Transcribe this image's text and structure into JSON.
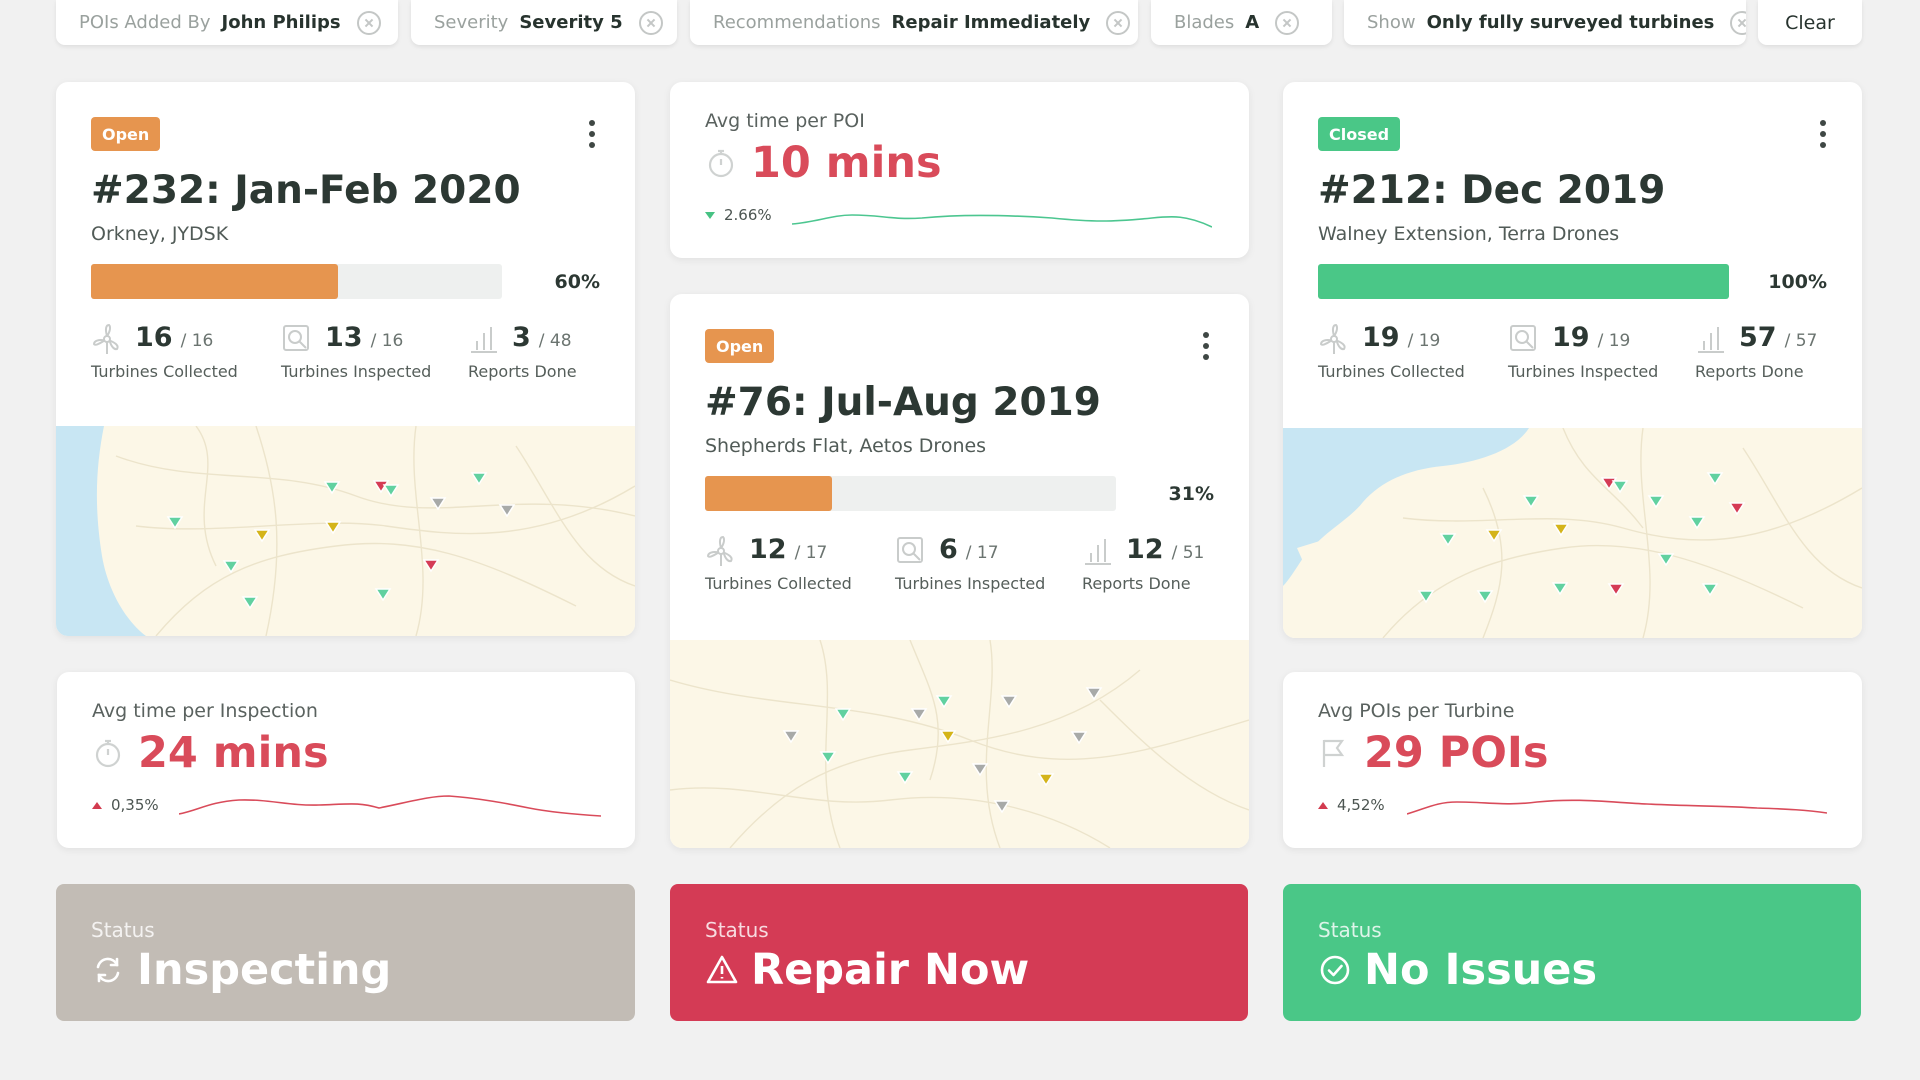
{
  "filters": [
    {
      "label": "POIs Added By",
      "value": "John Philips"
    },
    {
      "label": "Severity",
      "value": "Severity 5"
    },
    {
      "label": "Recommendations",
      "value": "Repair Immediately"
    },
    {
      "label": "Blades",
      "value": "A"
    },
    {
      "label": "Show",
      "value": "Only fully surveyed turbines"
    }
  ],
  "clear_label": "Clear",
  "colors": {
    "open": "#e6954f",
    "closed": "#4ac787",
    "repair": "#d43b55",
    "inspecting": "#c2bcb5",
    "metric_red": "#d94b5a",
    "spark_green": "#4cc690",
    "pin_green": "#61d1a0",
    "pin_yellow": "#d4b41a",
    "pin_red": "#d53b55",
    "pin_grey": "#a8aaa8"
  },
  "projects": [
    {
      "status": "Open",
      "title": "#232: Jan-Feb 2020",
      "subtitle": "Orkney, JYDSK",
      "progress": 60,
      "progress_label": "60%",
      "stats": [
        {
          "icon": "turbine-icon",
          "value": "16",
          "total": "/ 16",
          "label": "Turbines Collected"
        },
        {
          "icon": "magnify-icon",
          "value": "13",
          "total": "/ 16",
          "label": "Turbines Inspected"
        },
        {
          "icon": "bar-chart-icon",
          "value": "3",
          "total": "/ 48",
          "label": "Reports Done"
        }
      ]
    },
    {
      "status": "Open",
      "title": "#76: Jul-Aug 2019",
      "subtitle": "Shepherds Flat, Aetos Drones",
      "progress": 31,
      "progress_label": "31%",
      "stats": [
        {
          "icon": "turbine-icon",
          "value": "12",
          "total": "/ 17",
          "label": "Turbines Collected"
        },
        {
          "icon": "magnify-icon",
          "value": "6",
          "total": "/ 17",
          "label": "Turbines Inspected"
        },
        {
          "icon": "bar-chart-icon",
          "value": "12",
          "total": "/ 51",
          "label": "Reports Done"
        }
      ]
    },
    {
      "status": "Closed",
      "title": "#212: Dec 2019",
      "subtitle": "Walney Extension, Terra Drones",
      "progress": 100,
      "progress_label": "100%",
      "stats": [
        {
          "icon": "turbine-icon",
          "value": "19",
          "total": "/ 19",
          "label": "Turbines Collected"
        },
        {
          "icon": "magnify-icon",
          "value": "19",
          "total": "/ 19",
          "label": "Turbines Inspected"
        },
        {
          "icon": "bar-chart-icon",
          "value": "57",
          "total": "/ 57",
          "label": "Reports Done"
        }
      ]
    }
  ],
  "metrics": [
    {
      "label": "Avg time per POI",
      "value": "10 mins",
      "icon": "stopwatch-icon",
      "change": "2.66%",
      "direction": "down"
    },
    {
      "label": "Avg time per Inspection",
      "value": "24 mins",
      "icon": "stopwatch-icon",
      "change": "0,35%",
      "direction": "up"
    },
    {
      "label": "Avg POIs per Turbine",
      "value": "29 POIs",
      "icon": "flag-icon",
      "change": "4,52%",
      "direction": "up"
    }
  ],
  "statuses": [
    {
      "label": "Status",
      "value": "Inspecting",
      "icon": "sync-icon"
    },
    {
      "label": "Status",
      "value": "Repair Now",
      "icon": "warning-icon"
    },
    {
      "label": "Status",
      "value": "No Issues",
      "icon": "check-circle-icon"
    }
  ]
}
